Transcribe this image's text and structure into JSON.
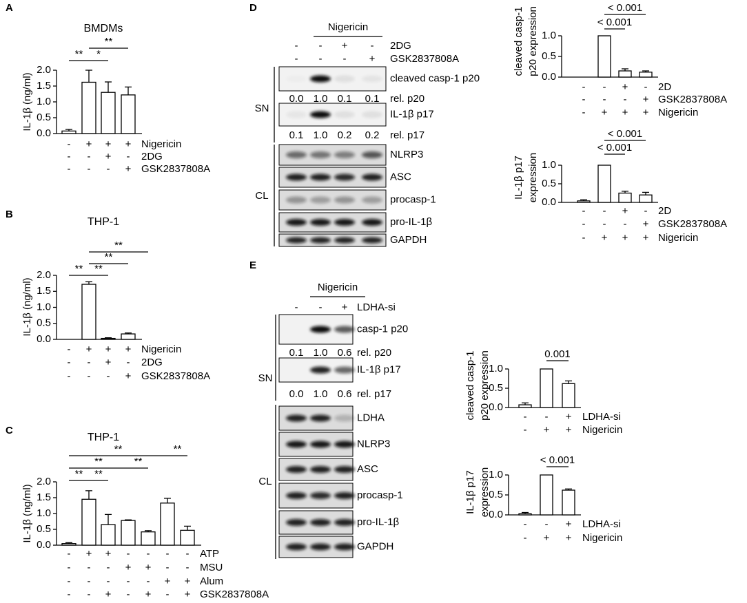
{
  "panel_labels": [
    "A",
    "B",
    "C",
    "D",
    "E"
  ],
  "chart_data": [
    {
      "type": "bar",
      "title": "BMDMs",
      "y_label": [
        "IL-1β (ng/ml)"
      ],
      "color": "#ffffff",
      "values": [
        0.08,
        1.62,
        1.3,
        1.22
      ],
      "errors": [
        0.05,
        0.38,
        0.33,
        0.25
      ],
      "ylim": [
        0,
        2
      ],
      "yticks": [
        {
          "value": 0,
          "label": "0.0"
        },
        {
          "value": 0.5,
          "label": "0.5"
        },
        {
          "value": 1,
          "label": "1.0"
        },
        {
          "value": 1.5,
          "label": "1.5"
        },
        {
          "value": 2,
          "label": "2.0"
        }
      ],
      "conditions": [
        {
          "name": "Nigericin",
          "signs": [
            "-",
            "+",
            "+",
            "+"
          ]
        },
        {
          "name": "2DG",
          "signs": [
            "-",
            "-",
            "+",
            "-"
          ]
        },
        {
          "name": "GSK2837808A",
          "signs": [
            "-",
            "-",
            "-",
            "+"
          ]
        }
      ],
      "annotations": [
        "**",
        "*",
        "**"
      ]
    },
    {
      "type": "bar",
      "title": "THP-1",
      "y_label": [
        "IL-1β (ng/ml)"
      ],
      "color": "#ffffff",
      "values": [
        0,
        1.72,
        0.03,
        0.17
      ],
      "errors": [
        0,
        0.08,
        0.02,
        0.03
      ],
      "ylim": [
        0,
        2
      ],
      "yticks": [
        {
          "value": 0,
          "label": "0.0"
        },
        {
          "value": 0.5,
          "label": "0.5"
        },
        {
          "value": 1,
          "label": "1.0"
        },
        {
          "value": 1.5,
          "label": "1.5"
        },
        {
          "value": 2,
          "label": "2.0"
        }
      ],
      "conditions": [
        {
          "name": "Nigericin",
          "signs": [
            "-",
            "+",
            "+",
            "+"
          ]
        },
        {
          "name": "2DG",
          "signs": [
            "-",
            "-",
            "+",
            "-"
          ]
        },
        {
          "name": "GSK2837808A",
          "signs": [
            "-",
            "-",
            "-",
            "+"
          ]
        }
      ],
      "annotations": [
        "**",
        "**",
        "**",
        "**"
      ]
    },
    {
      "type": "bar",
      "title": "THP-1",
      "y_label": [
        "IL-1β (ng/ml)"
      ],
      "color": "#ffffff",
      "values": [
        0.05,
        1.45,
        0.65,
        0.78,
        0.42,
        1.33,
        0.47
      ],
      "errors": [
        0.03,
        0.27,
        0.32,
        0.02,
        0.04,
        0.15,
        0.13
      ],
      "ylim": [
        0,
        2
      ],
      "yticks": [
        {
          "value": 0,
          "label": "0.0"
        },
        {
          "value": 0.5,
          "label": "0.5"
        },
        {
          "value": 1,
          "label": "1.0"
        },
        {
          "value": 1.5,
          "label": "1.5"
        },
        {
          "value": 2,
          "label": "2.0"
        }
      ],
      "conditions": [
        {
          "name": "ATP",
          "signs": [
            "-",
            "+",
            "+",
            "-",
            "-",
            "-",
            "-"
          ]
        },
        {
          "name": "MSU",
          "signs": [
            "-",
            "-",
            "-",
            "+",
            "+",
            "-",
            "-"
          ]
        },
        {
          "name": "Alum",
          "signs": [
            "-",
            "-",
            "-",
            "-",
            "-",
            "+",
            "+"
          ]
        },
        {
          "name": "GSK2837808A",
          "signs": [
            "-",
            "-",
            "+",
            "-",
            "+",
            "-",
            "+"
          ]
        }
      ],
      "annotations": [
        "**",
        "**",
        "**",
        "**",
        "**",
        "**"
      ]
    },
    {
      "type": "bar",
      "y_label": [
        "cleaved casp-1",
        "p20 expression"
      ],
      "color": "#ffffff",
      "values": [
        0,
        1,
        0.15,
        0.12
      ],
      "errors": [
        0,
        0,
        0.05,
        0.03
      ],
      "ylim": [
        0,
        1
      ],
      "yticks": [
        {
          "value": 0,
          "label": "0.0"
        },
        {
          "value": 0.5,
          "label": "0.5"
        },
        {
          "value": 1,
          "label": "1.0"
        }
      ],
      "conditions": [
        {
          "name": "2D",
          "signs": [
            "-",
            "-",
            "+",
            "-"
          ]
        },
        {
          "name": "GSK2837808A",
          "signs": [
            "-",
            "-",
            "-",
            "+"
          ]
        },
        {
          "name": "Nigericin",
          "signs": [
            "-",
            "+",
            "+",
            "+"
          ]
        }
      ],
      "annotations": [
        "< 0.001",
        "< 0.001"
      ]
    },
    {
      "type": "bar",
      "y_label": [
        "IL-1β p17",
        "expression"
      ],
      "color": "#ffffff",
      "values": [
        0.04,
        1,
        0.25,
        0.2
      ],
      "errors": [
        0.03,
        0,
        0.05,
        0.07
      ],
      "ylim": [
        0,
        1
      ],
      "yticks": [
        {
          "value": 0,
          "label": "0.0"
        },
        {
          "value": 0.5,
          "label": "0.5"
        },
        {
          "value": 1,
          "label": "1.0"
        }
      ],
      "conditions": [
        {
          "name": "2D",
          "signs": [
            "-",
            "-",
            "+",
            "-"
          ]
        },
        {
          "name": "GSK2837808A",
          "signs": [
            "-",
            "-",
            "-",
            "+"
          ]
        },
        {
          "name": "Nigericin",
          "signs": [
            "-",
            "+",
            "+",
            "+"
          ]
        }
      ],
      "annotations": [
        "< 0.001",
        "< 0.001"
      ]
    },
    {
      "type": "bar",
      "y_label": [
        "cleaved casp-1",
        "p20 expression"
      ],
      "color": "#ffffff",
      "values": [
        0.07,
        1,
        0.62
      ],
      "errors": [
        0.05,
        0,
        0.07
      ],
      "ylim": [
        0,
        1
      ],
      "yticks": [
        {
          "value": 0,
          "label": "0.0"
        },
        {
          "value": 0.5,
          "label": "0.5"
        },
        {
          "value": 1,
          "label": "1.0"
        }
      ],
      "conditions": [
        {
          "name": "LDHA-si",
          "signs": [
            "-",
            "-",
            "+"
          ]
        },
        {
          "name": "Nigericin",
          "signs": [
            "-",
            "+",
            "+"
          ]
        }
      ],
      "annotations": [
        "0.001"
      ]
    },
    {
      "type": "bar",
      "y_label": [
        "IL-1β p17",
        "expression"
      ],
      "color": "#ffffff",
      "values": [
        0.03,
        1,
        0.62
      ],
      "errors": [
        0.03,
        0,
        0.03
      ],
      "ylim": [
        0,
        1
      ],
      "yticks": [
        {
          "value": 0,
          "label": "0.0"
        },
        {
          "value": 0.5,
          "label": "0.5"
        },
        {
          "value": 1,
          "label": "1.0"
        }
      ],
      "conditions": [
        {
          "name": "LDHA-si",
          "signs": [
            "-",
            "-",
            "+"
          ]
        },
        {
          "name": "Nigericin",
          "signs": [
            "-",
            "+",
            "+"
          ]
        }
      ],
      "annotations": [
        "< 0.001"
      ]
    }
  ],
  "blots": [
    {
      "treatment": "Nigericin",
      "conditions": [
        {
          "name": "2DG",
          "signs": [
            "-",
            "-",
            "+",
            "-"
          ]
        },
        {
          "name": "GSK2837808A",
          "signs": [
            "-",
            "-",
            "-",
            "+"
          ]
        }
      ],
      "groups": [
        {
          "label": "SN",
          "rows": [
            {
              "name": "cleaved casp-1 p20"
            },
            {
              "name": "rel. p20",
              "values": [
                "0.0",
                "1.0",
                "0.1",
                "0.1"
              ]
            },
            {
              "name": "IL-1β p17"
            },
            {
              "name": "rel. p17",
              "values": [
                "0.1",
                "1.0",
                "0.2",
                "0.2"
              ]
            }
          ]
        },
        {
          "label": "CL",
          "rows": [
            {
              "name": "NLRP3"
            },
            {
              "name": "ASC"
            },
            {
              "name": "procasp-1"
            },
            {
              "name": "pro-IL-1β"
            },
            {
              "name": "GAPDH"
            }
          ]
        }
      ]
    },
    {
      "treatment": "Nigericin",
      "conditions": [
        {
          "name": "LDHA-si",
          "signs": [
            "-",
            "-",
            "+"
          ]
        }
      ],
      "groups": [
        {
          "label": "SN",
          "rows": [
            {
              "name": "casp-1 p20"
            },
            {
              "name": "rel. p20",
              "values": [
                "0.1",
                "1.0",
                "0.6"
              ]
            },
            {
              "name": "IL-1β p17"
            },
            {
              "name": "rel. p17",
              "values": [
                "0.0",
                "1.0",
                "0.6"
              ]
            }
          ]
        },
        {
          "label": "CL",
          "rows": [
            {
              "name": "LDHA"
            },
            {
              "name": "NLRP3"
            },
            {
              "name": "ASC"
            },
            {
              "name": "procasp-1"
            },
            {
              "name": "pro-IL-1β"
            },
            {
              "name": "GAPDH"
            }
          ]
        }
      ]
    }
  ]
}
